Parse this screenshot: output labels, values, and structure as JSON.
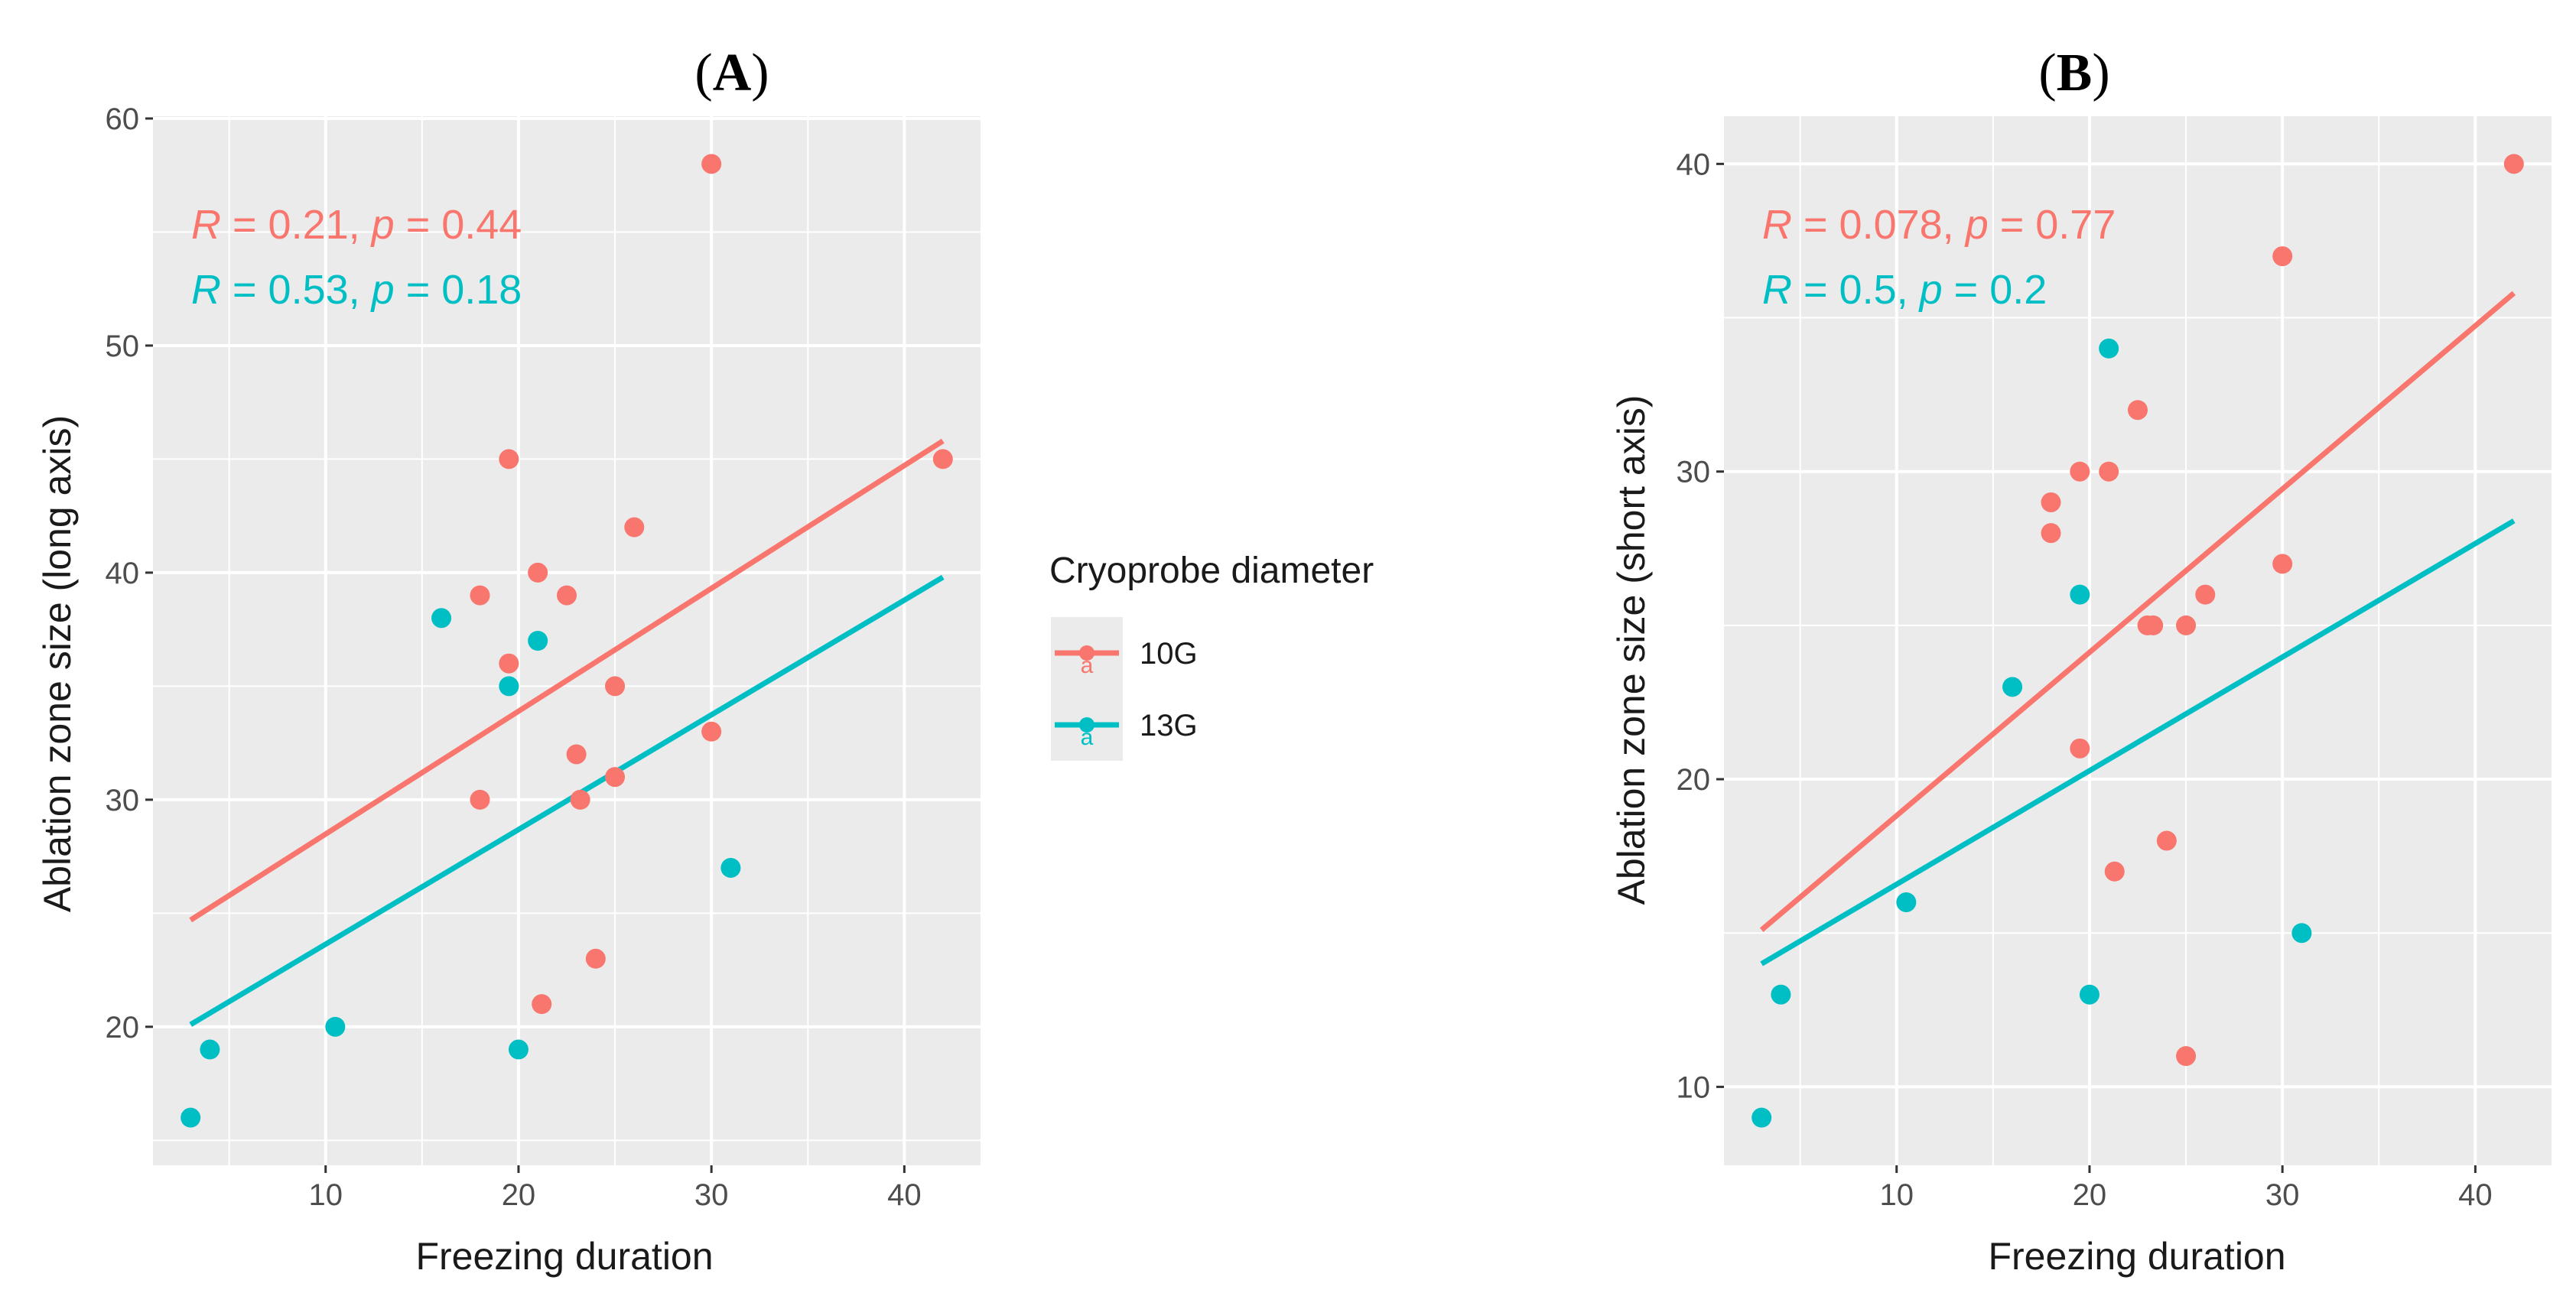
{
  "figure": {
    "legend": {
      "title": "Cryoprobe diameter",
      "placement": "center-right",
      "entries": [
        {
          "label": "10G",
          "color": "#F8766D",
          "key_letter": "a"
        },
        {
          "label": "13G",
          "color": "#00BFC4",
          "key_letter": "a"
        }
      ]
    }
  },
  "chart_data": [
    {
      "type": "scatter",
      "panel_label_open": "(",
      "panel_letter": "A",
      "panel_label_close": ")",
      "xlabel": "Freezing duration",
      "ylabel": "Ablation zone size (long axis)",
      "xlim": [
        1.05,
        43.95
      ],
      "ylim": [
        13.9,
        60.1
      ],
      "xticks": [
        10,
        20,
        30,
        40
      ],
      "yticks": [
        20,
        30,
        40,
        50,
        60
      ],
      "grid": true,
      "background": "#EBEBEB",
      "series": [
        {
          "name": "10G",
          "color": "#F8766D",
          "stats": {
            "r_symbol": "R",
            "r_text": " = 0.21, ",
            "p_symbol": "p",
            "p_text": " = 0.44"
          },
          "fit": {
            "x": [
              3,
              42
            ],
            "y": [
              24.7,
              45.8
            ]
          },
          "points": [
            {
              "x": 18,
              "y": 39
            },
            {
              "x": 18,
              "y": 30
            },
            {
              "x": 19.5,
              "y": 45
            },
            {
              "x": 19.5,
              "y": 36
            },
            {
              "x": 21,
              "y": 40
            },
            {
              "x": 21.2,
              "y": 21
            },
            {
              "x": 22.5,
              "y": 39
            },
            {
              "x": 23,
              "y": 32
            },
            {
              "x": 23.2,
              "y": 30
            },
            {
              "x": 24,
              "y": 23
            },
            {
              "x": 25,
              "y": 35
            },
            {
              "x": 25,
              "y": 31
            },
            {
              "x": 26,
              "y": 42
            },
            {
              "x": 30,
              "y": 58
            },
            {
              "x": 30,
              "y": 33
            },
            {
              "x": 42,
              "y": 45
            }
          ]
        },
        {
          "name": "13G",
          "color": "#00BFC4",
          "stats": {
            "r_symbol": "R",
            "r_text": " = 0.53, ",
            "p_symbol": "p",
            "p_text": " = 0.18"
          },
          "fit": {
            "x": [
              3,
              42
            ],
            "y": [
              20.1,
              39.8
            ]
          },
          "points": [
            {
              "x": 3,
              "y": 16
            },
            {
              "x": 4,
              "y": 19
            },
            {
              "x": 10.5,
              "y": 20
            },
            {
              "x": 16,
              "y": 38
            },
            {
              "x": 19.5,
              "y": 35
            },
            {
              "x": 20,
              "y": 19
            },
            {
              "x": 21,
              "y": 37
            },
            {
              "x": 31,
              "y": 27
            }
          ]
        }
      ]
    },
    {
      "type": "scatter",
      "panel_label_open": "(",
      "panel_letter": "B",
      "panel_label_close": ")",
      "xlabel": "Freezing duration",
      "ylabel": "Ablation zone size (short axis)",
      "xlim": [
        1.05,
        43.95
      ],
      "ylim": [
        7.45,
        41.55
      ],
      "xticks": [
        10,
        20,
        30,
        40
      ],
      "yticks": [
        10,
        20,
        30,
        40
      ],
      "grid": true,
      "background": "#EBEBEB",
      "series": [
        {
          "name": "10G",
          "color": "#F8766D",
          "stats": {
            "r_symbol": "R",
            "r_text": " = 0.078, ",
            "p_symbol": "p",
            "p_text": " = 0.77"
          },
          "fit": {
            "x": [
              3,
              42
            ],
            "y": [
              15.1,
              35.8
            ]
          },
          "points": [
            {
              "x": 18,
              "y": 29
            },
            {
              "x": 18,
              "y": 28
            },
            {
              "x": 19.5,
              "y": 30
            },
            {
              "x": 19.5,
              "y": 21
            },
            {
              "x": 21,
              "y": 30
            },
            {
              "x": 21.3,
              "y": 17
            },
            {
              "x": 22.5,
              "y": 32
            },
            {
              "x": 23,
              "y": 25
            },
            {
              "x": 23.3,
              "y": 25
            },
            {
              "x": 24,
              "y": 18
            },
            {
              "x": 25,
              "y": 25
            },
            {
              "x": 25,
              "y": 11
            },
            {
              "x": 26,
              "y": 26
            },
            {
              "x": 30,
              "y": 37
            },
            {
              "x": 30,
              "y": 27
            },
            {
              "x": 42,
              "y": 40
            }
          ]
        },
        {
          "name": "13G",
          "color": "#00BFC4",
          "stats": {
            "r_symbol": "R",
            "r_text": " = 0.5, ",
            "p_symbol": "p",
            "p_text": " = 0.2"
          },
          "fit": {
            "x": [
              3,
              42
            ],
            "y": [
              14.0,
              28.4
            ]
          },
          "points": [
            {
              "x": 3,
              "y": 9
            },
            {
              "x": 4,
              "y": 13
            },
            {
              "x": 10.5,
              "y": 16
            },
            {
              "x": 16,
              "y": 23
            },
            {
              "x": 19.5,
              "y": 26
            },
            {
              "x": 20,
              "y": 13
            },
            {
              "x": 21,
              "y": 34
            },
            {
              "x": 31,
              "y": 15
            }
          ]
        }
      ]
    }
  ]
}
